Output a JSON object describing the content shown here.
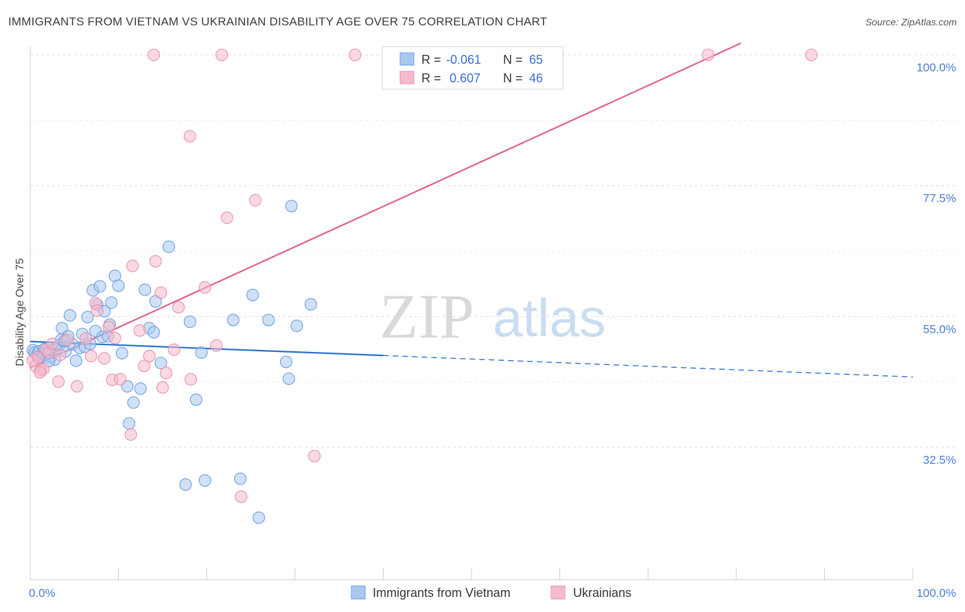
{
  "title": "IMMIGRANTS FROM VIETNAM VS UKRAINIAN DISABILITY AGE OVER 75 CORRELATION CHART",
  "source": "Source: ZipAtlas.com",
  "watermark": {
    "zip": "ZIP",
    "atlas": "atlas"
  },
  "colors": {
    "blue_fill": "#a9c8f0",
    "blue_stroke": "#6a9ee0",
    "blue_line": "#2b6fcf",
    "pink_fill": "#f7b9cc",
    "pink_stroke": "#ea8fab",
    "pink_line": "#e0608a",
    "grid": "#dcdcdc",
    "tick_text": "#4a7bd0"
  },
  "legend": {
    "rows": [
      {
        "r_label": "R =",
        "r_value": "-0.061",
        "n_label": "N =",
        "n_value": "65",
        "series": "blue"
      },
      {
        "r_label": "R =",
        "r_value": "0.607",
        "n_label": "N =",
        "n_value": "46",
        "series": "pink"
      }
    ]
  },
  "chart_data": {
    "type": "scatter",
    "title": "IMMIGRANTS FROM VIETNAM VS UKRAINIAN DISABILITY AGE OVER 75 CORRELATION CHART",
    "xlabel": "",
    "ylabel": "Disability Age Over 75",
    "xlim": [
      0,
      100
    ],
    "ylim": [
      12,
      102
    ],
    "x_tick_labels": [
      "0.0%",
      "100.0%"
    ],
    "y_ticks": [
      32.5,
      55.0,
      77.5,
      100.0
    ],
    "y_tick_labels": [
      "32.5%",
      "55.0%",
      "77.5%",
      "100.0%"
    ],
    "grid": true,
    "legend_position": "top-center",
    "series": [
      {
        "name": "Immigrants from Vietnam",
        "color": "#a9c8f0",
        "points": [
          [
            0.3,
            49.2
          ],
          [
            0.5,
            48.8
          ],
          [
            0.8,
            48.4
          ],
          [
            1.0,
            49.0
          ],
          [
            1.2,
            47.9
          ],
          [
            1.5,
            48.5
          ],
          [
            1.8,
            49.1
          ],
          [
            2.0,
            48.6
          ],
          [
            2.3,
            48.0
          ],
          [
            2.5,
            49.3
          ],
          [
            2.8,
            47.6
          ],
          [
            3.0,
            49.5
          ],
          [
            3.3,
            50.1
          ],
          [
            3.5,
            51.0
          ],
          [
            3.6,
            53.0
          ],
          [
            4.0,
            49.0
          ],
          [
            4.3,
            51.6
          ],
          [
            4.5,
            55.2
          ],
          [
            4.8,
            50.2
          ],
          [
            5.2,
            47.4
          ],
          [
            5.6,
            49.6
          ],
          [
            5.9,
            52.0
          ],
          [
            6.2,
            49.8
          ],
          [
            6.5,
            54.9
          ],
          [
            6.8,
            50.3
          ],
          [
            7.1,
            59.5
          ],
          [
            7.4,
            52.5
          ],
          [
            7.6,
            57.0
          ],
          [
            7.9,
            60.2
          ],
          [
            8.2,
            51.5
          ],
          [
            8.4,
            55.9
          ],
          [
            8.8,
            51.6
          ],
          [
            9.2,
            57.4
          ],
          [
            9.6,
            62.0
          ],
          [
            10.0,
            60.3
          ],
          [
            10.4,
            48.7
          ],
          [
            11.0,
            43.0
          ],
          [
            11.2,
            36.6
          ],
          [
            11.7,
            40.2
          ],
          [
            12.5,
            42.6
          ],
          [
            13.0,
            59.6
          ],
          [
            13.5,
            53.0
          ],
          [
            14.0,
            52.3
          ],
          [
            14.2,
            57.6
          ],
          [
            14.8,
            47.0
          ],
          [
            15.7,
            67.0
          ],
          [
            17.6,
            26.1
          ],
          [
            18.1,
            54.1
          ],
          [
            18.8,
            40.7
          ],
          [
            19.4,
            48.8
          ],
          [
            19.8,
            26.8
          ],
          [
            23.0,
            54.4
          ],
          [
            23.8,
            27.1
          ],
          [
            25.2,
            58.7
          ],
          [
            25.9,
            20.4
          ],
          [
            27.0,
            54.4
          ],
          [
            29.0,
            47.2
          ],
          [
            29.3,
            44.3
          ],
          [
            29.6,
            74.0
          ],
          [
            30.2,
            53.4
          ],
          [
            31.8,
            57.1
          ],
          [
            1.6,
            49.4
          ],
          [
            2.1,
            47.3
          ],
          [
            3.9,
            50.8
          ],
          [
            9.0,
            53.6
          ]
        ]
      },
      {
        "name": "Ukrainians",
        "color": "#f7b9cc",
        "points": [
          [
            0.3,
            47.5
          ],
          [
            0.6,
            46.5
          ],
          [
            0.9,
            48.0
          ],
          [
            1.2,
            45.8
          ],
          [
            1.5,
            46.0
          ],
          [
            1.8,
            49.3
          ],
          [
            2.1,
            48.8
          ],
          [
            2.5,
            50.3
          ],
          [
            3.2,
            43.8
          ],
          [
            4.2,
            51.0
          ],
          [
            5.3,
            43.0
          ],
          [
            6.3,
            51.2
          ],
          [
            6.9,
            48.2
          ],
          [
            7.4,
            57.3
          ],
          [
            7.6,
            56.0
          ],
          [
            8.4,
            47.8
          ],
          [
            8.9,
            53.2
          ],
          [
            9.3,
            44.1
          ],
          [
            9.6,
            51.3
          ],
          [
            10.2,
            44.2
          ],
          [
            11.4,
            34.7
          ],
          [
            11.6,
            63.7
          ],
          [
            12.4,
            52.6
          ],
          [
            12.9,
            46.5
          ],
          [
            13.5,
            48.2
          ],
          [
            14.2,
            64.5
          ],
          [
            14.8,
            59.1
          ],
          [
            15.0,
            42.8
          ],
          [
            15.4,
            45.3
          ],
          [
            16.3,
            49.3
          ],
          [
            16.8,
            56.6
          ],
          [
            18.2,
            44.2
          ],
          [
            18.1,
            86.0
          ],
          [
            19.8,
            60.0
          ],
          [
            21.1,
            50.0
          ],
          [
            22.3,
            72.0
          ],
          [
            23.9,
            24.0
          ],
          [
            25.5,
            75.0
          ],
          [
            32.2,
            31.0
          ],
          [
            14.0,
            100.0
          ],
          [
            21.7,
            100.0
          ],
          [
            36.8,
            100.0
          ],
          [
            76.8,
            100.0
          ],
          [
            88.5,
            100.0
          ],
          [
            1.1,
            45.4
          ],
          [
            3.4,
            48.4
          ]
        ]
      }
    ],
    "trend_lines": [
      {
        "series": "Immigrants from Vietnam",
        "solid": [
          [
            0,
            50.7
          ],
          [
            40,
            48.3
          ]
        ],
        "dashed": [
          [
            40,
            48.3
          ],
          [
            100,
            44.6
          ]
        ]
      },
      {
        "series": "Ukrainians",
        "solid": [
          [
            0,
            46.2
          ],
          [
            80.5,
            102
          ]
        ]
      }
    ]
  }
}
